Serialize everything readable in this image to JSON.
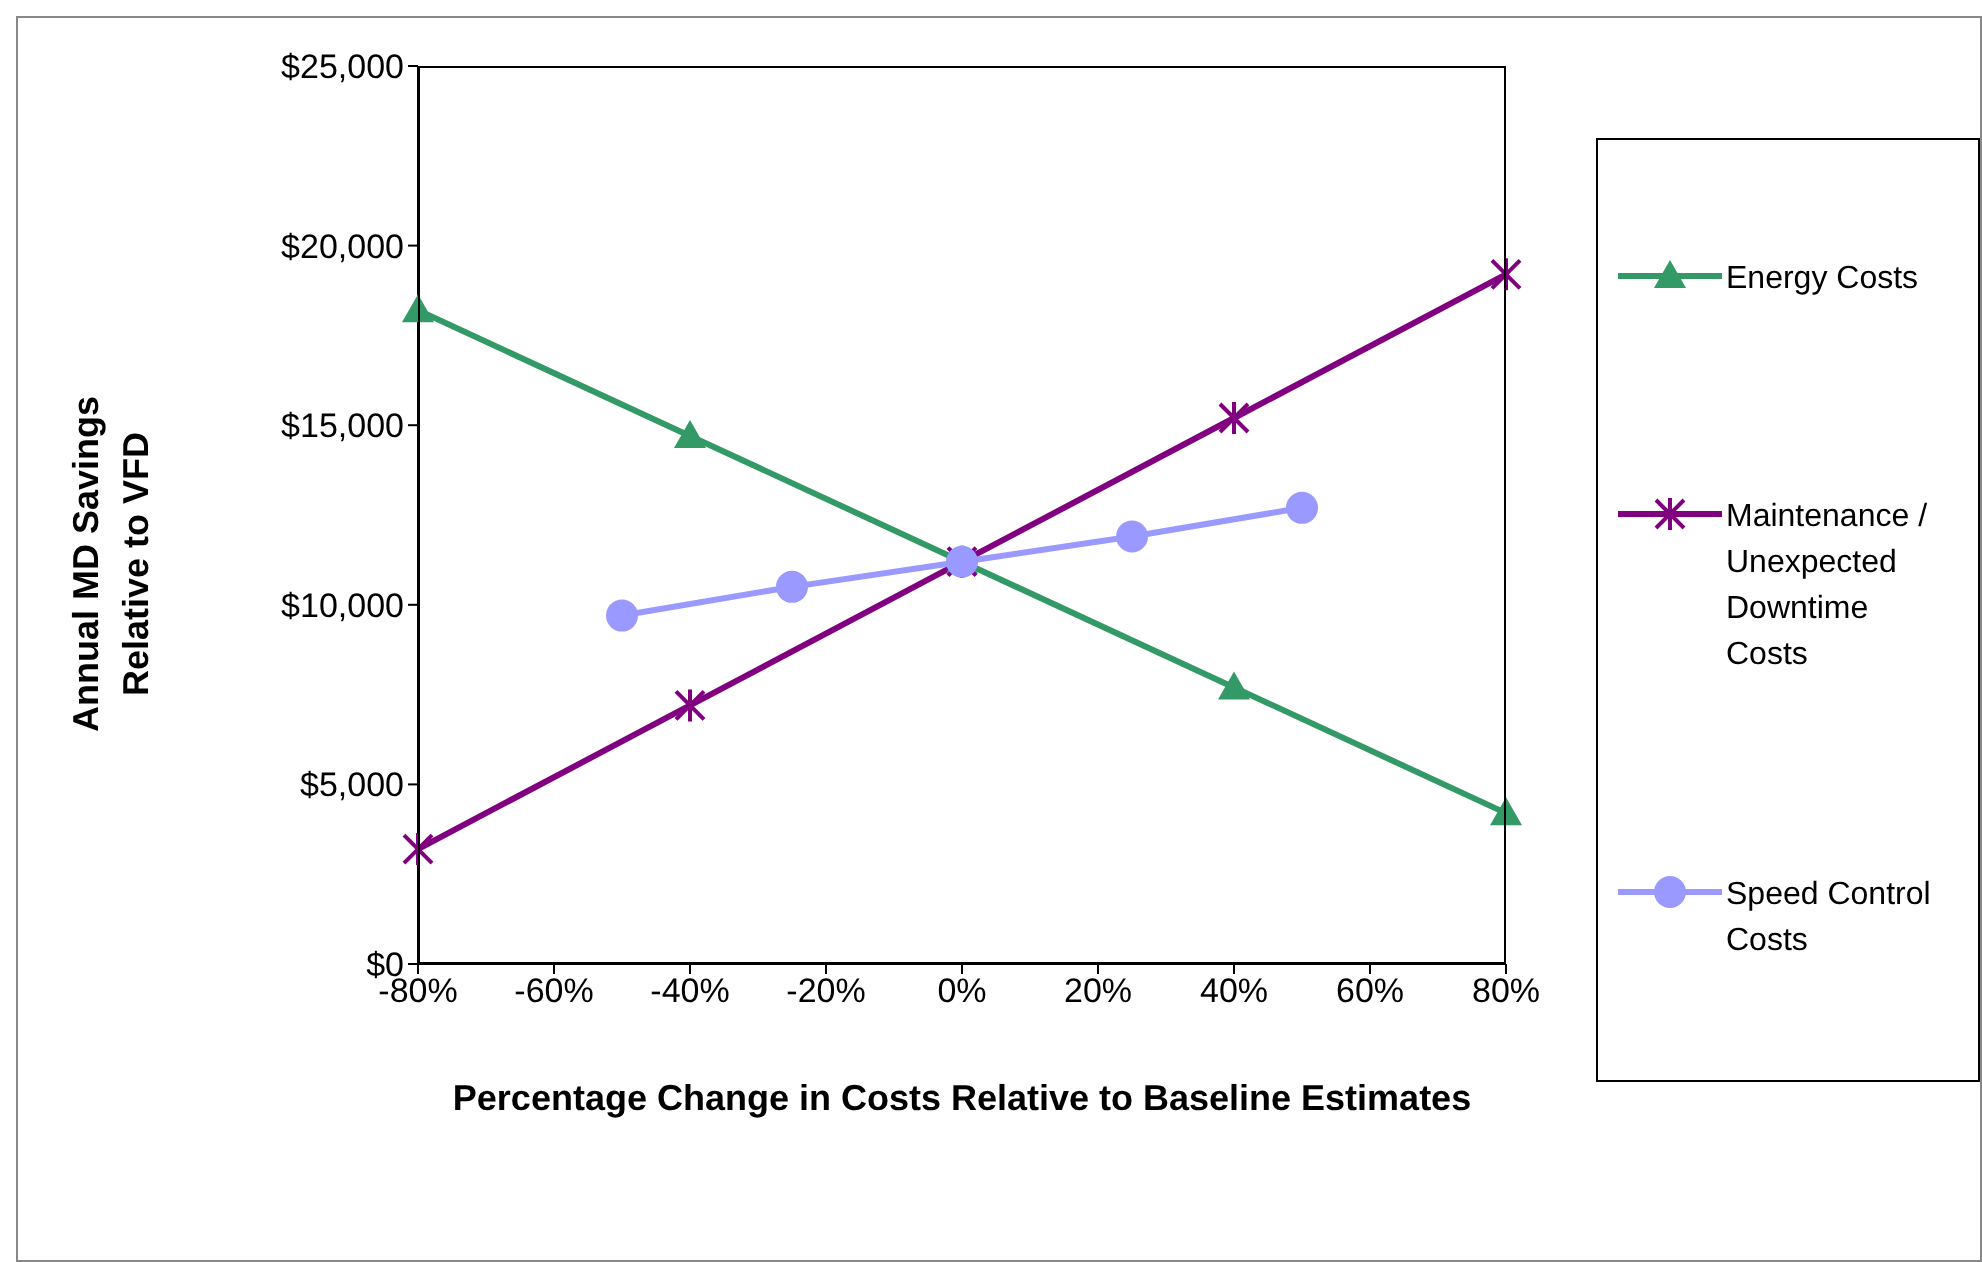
{
  "chart_data": {
    "type": "line",
    "xlabel": "Percentage Change in Costs Relative to Baseline Estimates",
    "ylabel": "Annual MD Savings Relative to VFD",
    "xlim": [
      -80,
      80
    ],
    "xticks": [
      {
        "value": -80,
        "label": "-80%"
      },
      {
        "value": -60,
        "label": "-60%"
      },
      {
        "value": -40,
        "label": "-40%"
      },
      {
        "value": -20,
        "label": "-20%"
      },
      {
        "value": 0,
        "label": "0%"
      },
      {
        "value": 20,
        "label": "20%"
      },
      {
        "value": 40,
        "label": "40%"
      },
      {
        "value": 60,
        "label": "60%"
      },
      {
        "value": 80,
        "label": "80%"
      }
    ],
    "ylim": [
      0,
      25000
    ],
    "yticks": [
      {
        "value": 0,
        "label": "$0"
      },
      {
        "value": 5000,
        "label": "$5,000"
      },
      {
        "value": 10000,
        "label": "$10,000"
      },
      {
        "value": 15000,
        "label": "$15,000"
      },
      {
        "value": 20000,
        "label": "$20,000"
      },
      {
        "value": 25000,
        "label": "$25,000"
      }
    ],
    "grid": false,
    "legend": "right",
    "series": [
      {
        "name": "Energy Costs",
        "color": "#339966",
        "marker": "triangle",
        "x": [
          -80,
          -40,
          0,
          40,
          80
        ],
        "values": [
          18200,
          14700,
          11200,
          7700,
          4200
        ]
      },
      {
        "name": "Maintenance / Unexpected Downtime Costs",
        "color": "#800080",
        "marker": "cross",
        "x": [
          -80,
          -40,
          0,
          40,
          80
        ],
        "values": [
          3200,
          7200,
          11200,
          15200,
          19200
        ]
      },
      {
        "name": "Speed Control Costs",
        "color": "#9999ff",
        "marker": "circle",
        "x": [
          -50,
          -25,
          0,
          25,
          50
        ],
        "values": [
          9700,
          10500,
          11200,
          11900,
          12700
        ]
      }
    ]
  }
}
